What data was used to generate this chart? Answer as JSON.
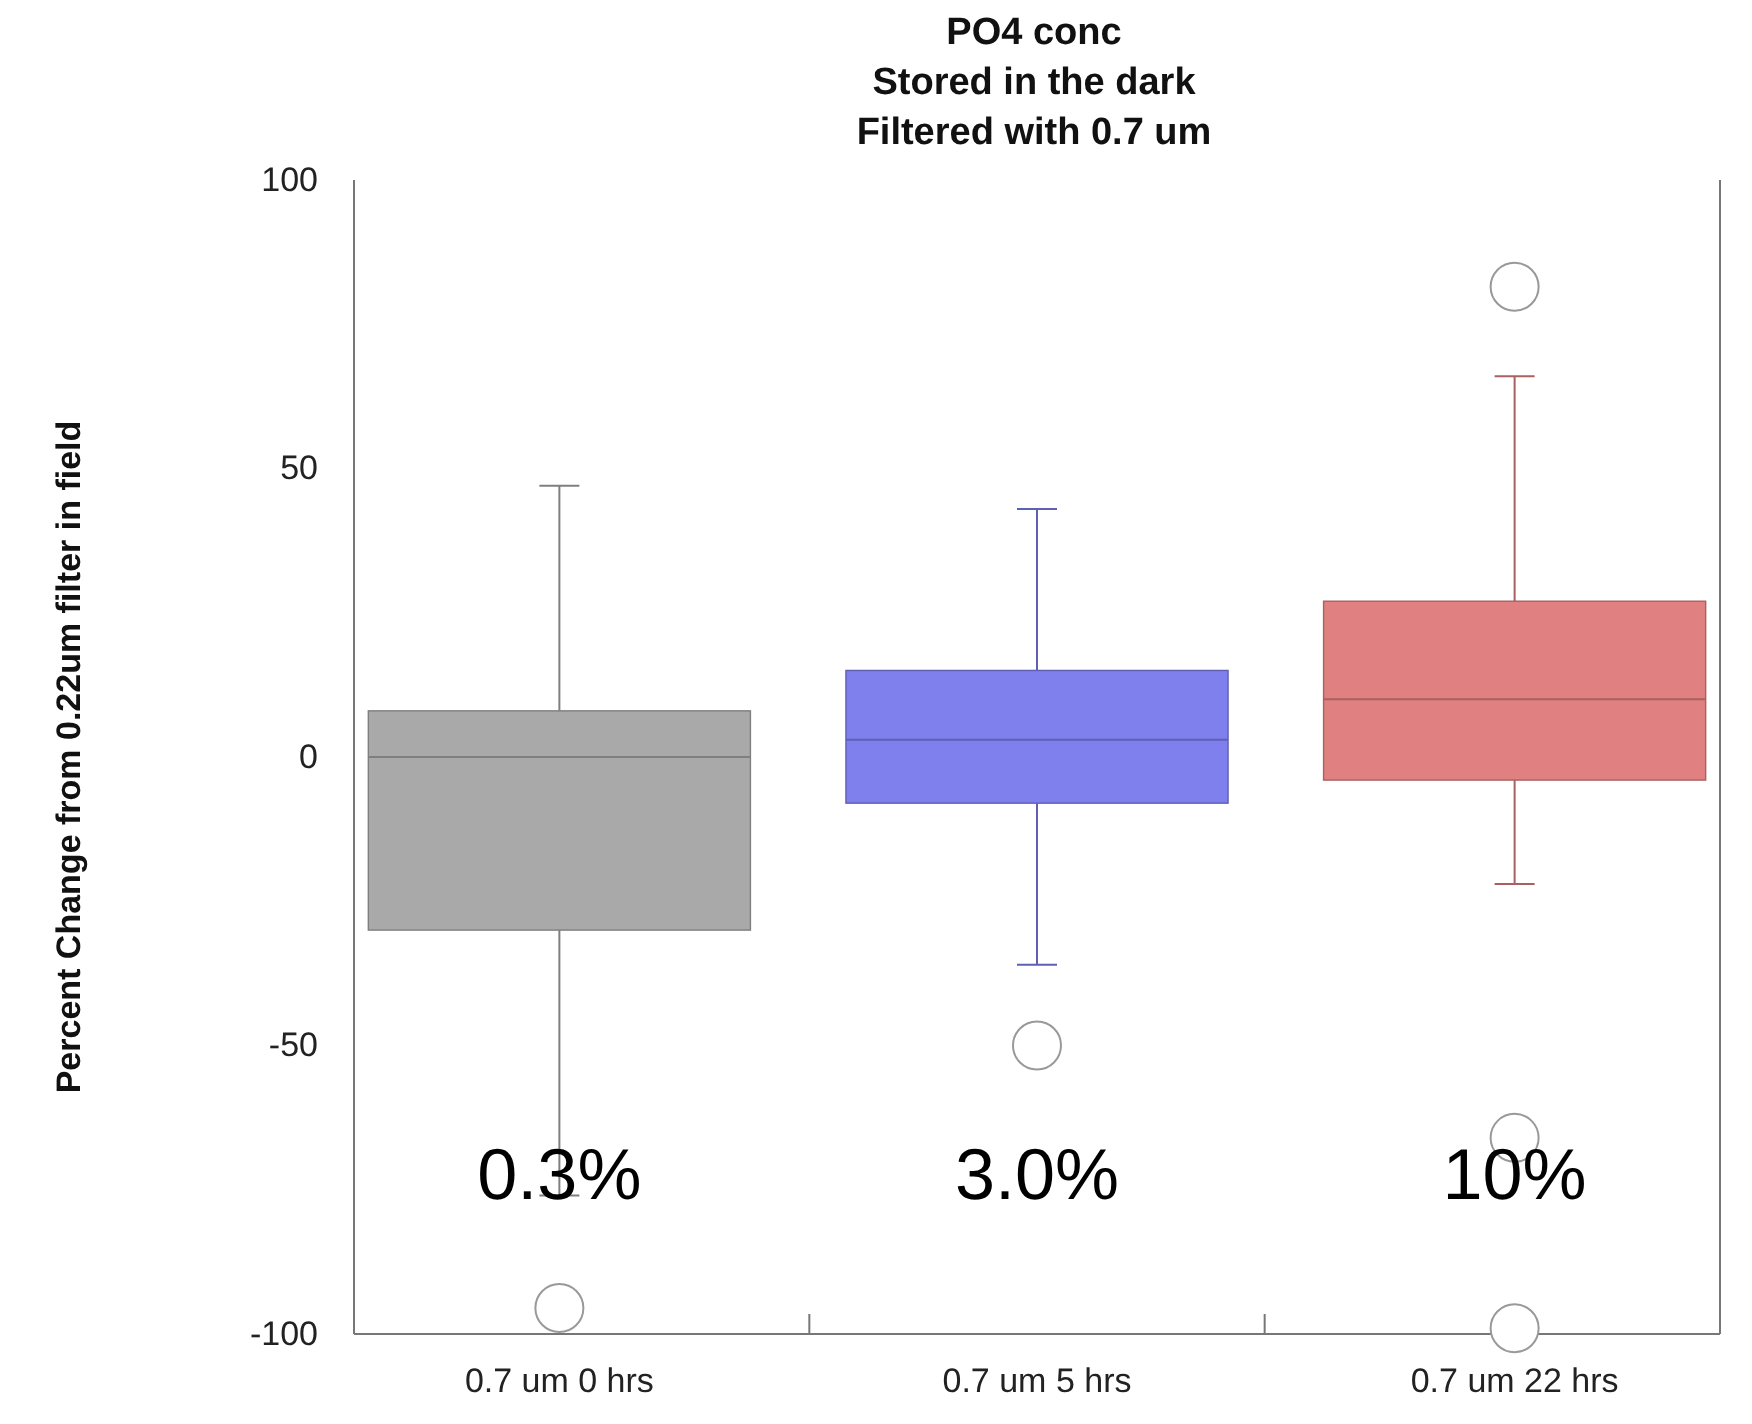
{
  "chart_data": {
    "type": "box",
    "title": "PO4 conc\nStored in the dark\nFiltered with 0.7 um",
    "ylabel": "Percent Change from 0.22um filter in field",
    "categories": [
      "0.7 um 0 hrs",
      "0.7 um 5 hrs",
      "0.7 um 22 hrs"
    ],
    "colors": [
      "#a9a9a9",
      "#7f7fee",
      "#e08080"
    ],
    "boxes": [
      {
        "low": -76,
        "q1": -30,
        "median": 0,
        "q3": 8,
        "high": 47,
        "outliers": [
          -95.5
        ]
      },
      {
        "low": -36,
        "q1": -8,
        "median": 3,
        "q3": 15,
        "high": 43,
        "outliers": [
          -50
        ]
      },
      {
        "low": -22,
        "q1": -4,
        "median": 10,
        "q3": 27,
        "high": 66,
        "outliers": [
          81.5,
          -66,
          -99
        ]
      }
    ],
    "ylim": [
      -100,
      100
    ],
    "yticks": [
      -100,
      -50,
      0,
      50,
      100
    ],
    "annotations": [
      "0.3%",
      "3.0%",
      "10%"
    ]
  }
}
